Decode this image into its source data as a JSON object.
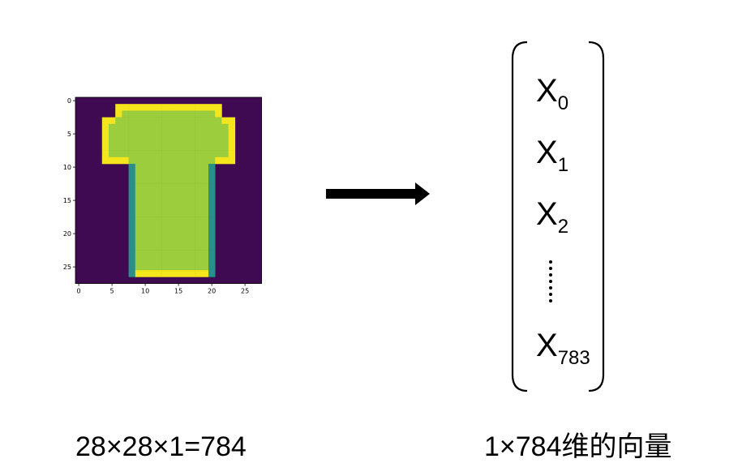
{
  "image_panel": {
    "grid_size": 28,
    "x_ticks": [
      "0",
      "5",
      "10",
      "15",
      "20",
      "25"
    ],
    "y_ticks": [
      "0",
      "5",
      "10",
      "15",
      "20",
      "25"
    ],
    "colormap": "viridis",
    "subject": "t-shirt"
  },
  "vector": {
    "base": "X",
    "items": [
      {
        "sub": "0"
      },
      {
        "sub": "1"
      },
      {
        "sub": "2"
      },
      {
        "sub": "783"
      }
    ]
  },
  "captions": {
    "left": "28×28×1=784",
    "right": "1×784维的向量"
  },
  "colors": {
    "background": "#3f0a52",
    "shirt_body": "#9ccd3d",
    "shirt_edge": "#f4e51d",
    "transition": "#2a8f8a",
    "arrow": "#000000"
  }
}
